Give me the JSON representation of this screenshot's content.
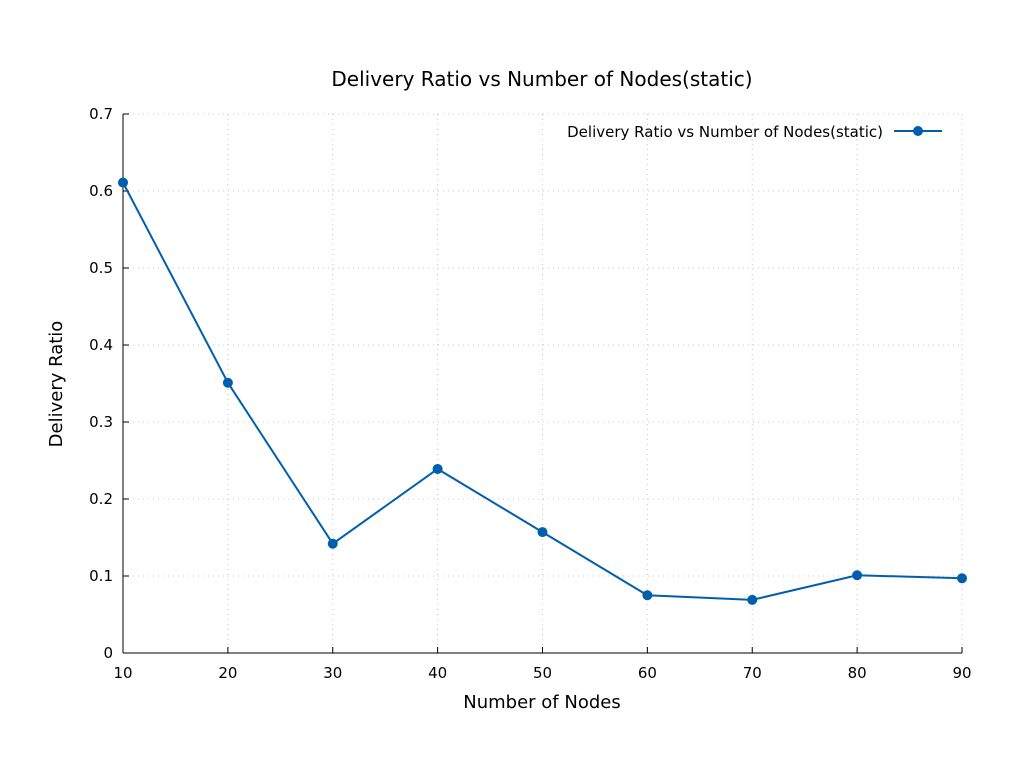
{
  "chart_data": {
    "type": "line",
    "title": "Delivery Ratio vs Number of Nodes(static)",
    "xlabel": "Number of Nodes",
    "ylabel": "Delivery Ratio",
    "xlim": [
      10,
      90
    ],
    "ylim": [
      0,
      0.7
    ],
    "x_ticks": [
      10,
      20,
      30,
      40,
      50,
      60,
      70,
      80,
      90
    ],
    "y_ticks": [
      0,
      0.1,
      0.2,
      0.3,
      0.4,
      0.5,
      0.6,
      0.7
    ],
    "y_tick_labels": [
      "0",
      "0.1",
      "0.2",
      "0.3",
      "0.4",
      "0.5",
      "0.6",
      "0.7"
    ],
    "grid": true,
    "legend_position": "top-right",
    "series": [
      {
        "name": "Delivery Ratio vs Number of Nodes(static)",
        "color": "#005fad",
        "marker": "circle",
        "x": [
          10,
          20,
          30,
          40,
          50,
          60,
          70,
          80,
          90
        ],
        "y": [
          0.611,
          0.351,
          0.142,
          0.239,
          0.157,
          0.075,
          0.069,
          0.101,
          0.097
        ]
      }
    ]
  }
}
